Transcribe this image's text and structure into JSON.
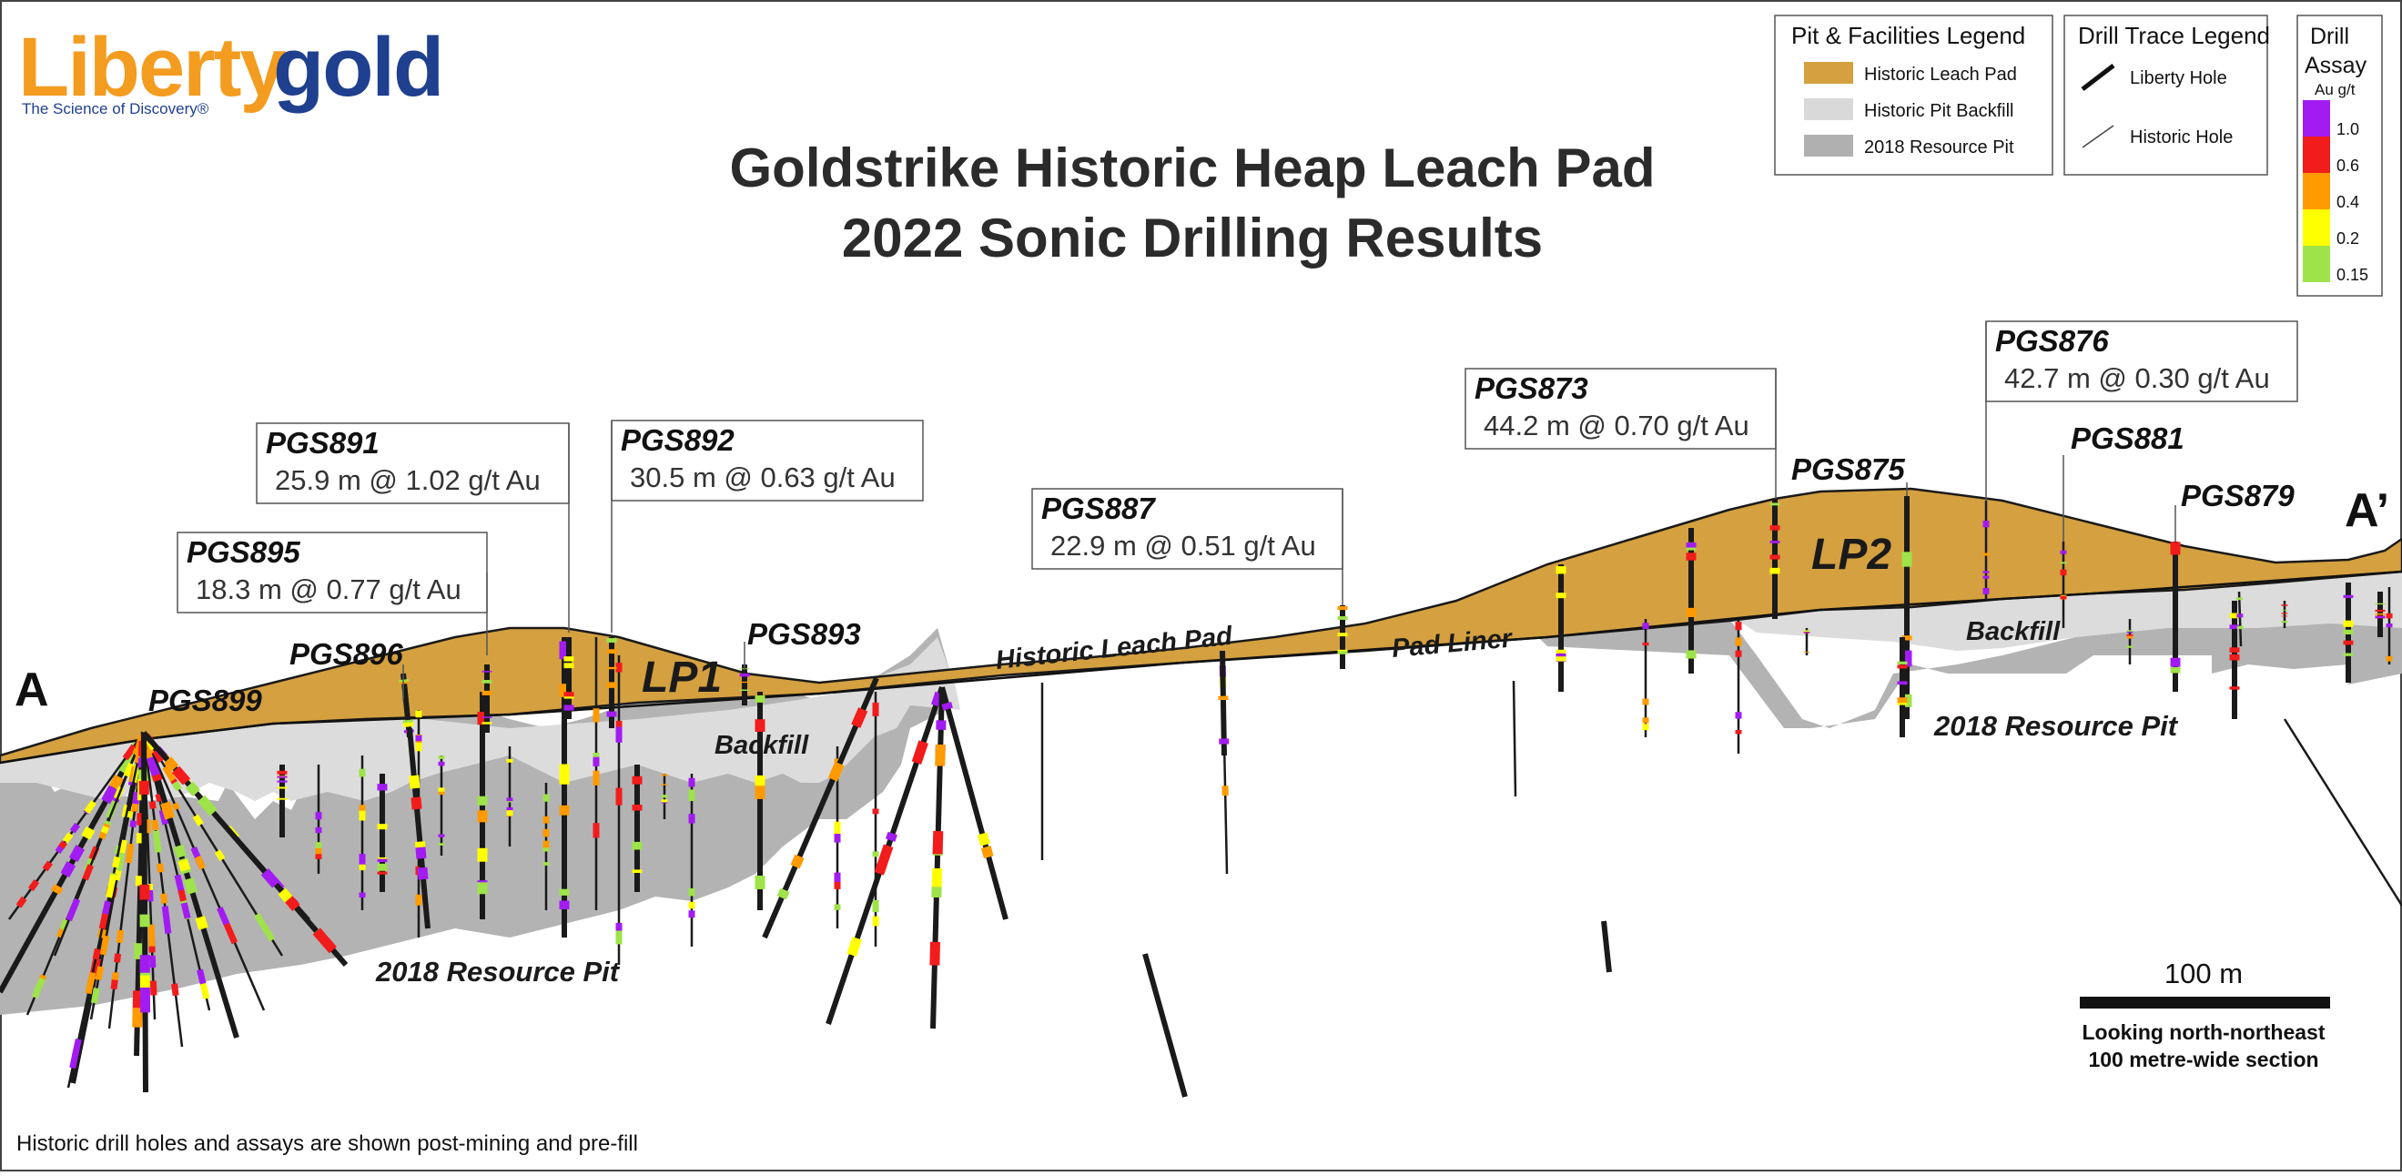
{
  "logo": {
    "word_liberty": "Liberty",
    "word_gold": "gold",
    "tagline": "The Science of Discovery®",
    "colors": {
      "liberty": "#f39c1f",
      "gold": "#1f3f8f",
      "tagline": "#1f3f8f"
    }
  },
  "title": {
    "line1": "Goldstrike Historic Heap Leach Pad",
    "line2": "2022 Sonic Drilling Results"
  },
  "section_ends": {
    "start": "A",
    "end": "A’"
  },
  "legends": {
    "pit_facilities": {
      "title": "Pit & Facilities  Legend",
      "items": [
        {
          "label": "Historic Leach Pad",
          "color": "#d4a040"
        },
        {
          "label": "Historic Pit Backfill",
          "color": "#d9d9d9"
        },
        {
          "label": "2018 Resource Pit",
          "color": "#b0b0b0"
        }
      ]
    },
    "drill_trace": {
      "title": "Drill Trace Legend",
      "items": [
        {
          "label": "Liberty Hole",
          "style": "thick"
        },
        {
          "label": "Historic Hole",
          "style": "thin"
        }
      ]
    },
    "assay": {
      "title_line1": "Drill",
      "title_line2": "Assay",
      "unit": "Au g/t",
      "swatches": [
        "#a21cf2",
        "#f21c1c",
        "#ff9a00",
        "#ffff00",
        "#9ee34a"
      ],
      "thresholds": [
        "1.0",
        "0.6",
        "0.4",
        "0.2",
        "0.15"
      ]
    }
  },
  "labels": {
    "lp1": "LP1",
    "lp2": "LP2",
    "historic_leach_pad": "Historic Leach Pad",
    "pad_liner": "Pad Liner",
    "backfill_left": "Backfill",
    "backfill_right": "Backfill",
    "resource_pit_left": "2018 Resource Pit",
    "resource_pit_right": "2018 Resource Pit"
  },
  "holes": [
    {
      "id": "PGS899"
    },
    {
      "id": "PGS896"
    },
    {
      "id": "PGS895",
      "result": "18.3 m @ 0.77 g/t Au"
    },
    {
      "id": "PGS891",
      "result": "25.9 m @ 1.02 g/t Au"
    },
    {
      "id": "PGS892",
      "result": "30.5 m @ 0.63 g/t Au"
    },
    {
      "id": "PGS893"
    },
    {
      "id": "PGS887",
      "result": "22.9 m @ 0.51 g/t Au"
    },
    {
      "id": "PGS873",
      "result": "44.2 m @ 0.70 g/t Au"
    },
    {
      "id": "PGS875"
    },
    {
      "id": "PGS876",
      "result": "42.7 m @ 0.30 g/t Au"
    },
    {
      "id": "PGS881"
    },
    {
      "id": "PGS879"
    }
  ],
  "scale_bar": {
    "label": "100 m",
    "orientation": "Looking north-northeast",
    "section_width": "100 metre-wide section"
  },
  "footnote": "Historic drill holes and assays are shown post-mining and pre-fill"
}
